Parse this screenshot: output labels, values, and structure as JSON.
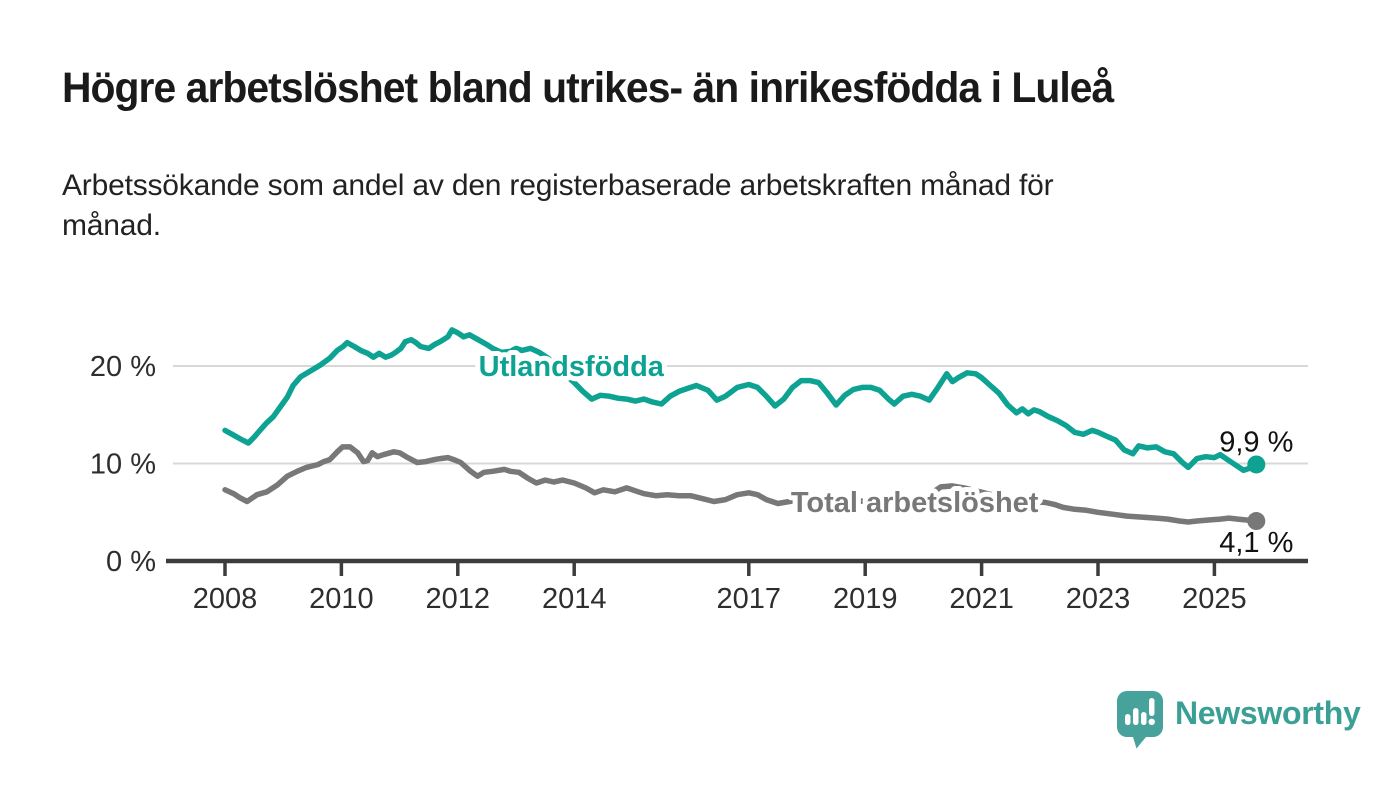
{
  "header": {
    "title": "Högre arbetslöshet bland utrikes- än inrikesfödda i Luleå",
    "subtitle_line1": "Arbetssökande som andel av den registerbaserade arbetskraften månad för",
    "subtitle_line2": "månad."
  },
  "chart_data": {
    "type": "line",
    "unit": "%",
    "grid": "horizontal",
    "legend_position": "inline-labels",
    "xlim": [
      2008,
      2025.75
    ],
    "ylim": [
      0,
      26
    ],
    "x_ticks": [
      "2008",
      "2010",
      "2012",
      "2014",
      "2017",
      "2019",
      "2021",
      "2023",
      "2025"
    ],
    "x_tick_years": [
      2008,
      2010,
      2012,
      2014,
      2017,
      2019,
      2021,
      2023,
      2025
    ],
    "y_ticks": [
      {
        "value": 0,
        "label": "0 %"
      },
      {
        "value": 10,
        "label": "10 %"
      },
      {
        "value": 20,
        "label": "20 %"
      }
    ],
    "series": [
      {
        "name": "Utlandsfödda",
        "color": "#0ea293",
        "end_label": "9,9 %",
        "end_value": 9.9,
        "label_anchor": {
          "x": 2013.95,
          "y": 20.0
        },
        "points": [
          [
            2008.0,
            13.4
          ],
          [
            2008.15,
            12.9
          ],
          [
            2008.3,
            12.4
          ],
          [
            2008.4,
            12.1
          ],
          [
            2008.5,
            12.7
          ],
          [
            2008.6,
            13.4
          ],
          [
            2008.72,
            14.2
          ],
          [
            2008.83,
            14.8
          ],
          [
            2008.95,
            15.8
          ],
          [
            2009.07,
            16.8
          ],
          [
            2009.17,
            18.0
          ],
          [
            2009.3,
            18.9
          ],
          [
            2009.5,
            19.6
          ],
          [
            2009.64,
            20.1
          ],
          [
            2009.8,
            20.8
          ],
          [
            2009.93,
            21.6
          ],
          [
            2010.03,
            22.0
          ],
          [
            2010.1,
            22.4
          ],
          [
            2010.22,
            22.0
          ],
          [
            2010.33,
            21.6
          ],
          [
            2010.45,
            21.3
          ],
          [
            2010.55,
            20.9
          ],
          [
            2010.65,
            21.3
          ],
          [
            2010.76,
            20.9
          ],
          [
            2010.85,
            21.1
          ],
          [
            2010.93,
            21.4
          ],
          [
            2011.02,
            21.8
          ],
          [
            2011.1,
            22.5
          ],
          [
            2011.2,
            22.7
          ],
          [
            2011.28,
            22.4
          ],
          [
            2011.36,
            22.0
          ],
          [
            2011.5,
            21.8
          ],
          [
            2011.6,
            22.2
          ],
          [
            2011.7,
            22.5
          ],
          [
            2011.83,
            23.0
          ],
          [
            2011.9,
            23.7
          ],
          [
            2012.0,
            23.4
          ],
          [
            2012.1,
            23.0
          ],
          [
            2012.2,
            23.2
          ],
          [
            2012.35,
            22.7
          ],
          [
            2012.5,
            22.2
          ],
          [
            2012.6,
            21.8
          ],
          [
            2012.75,
            21.4
          ],
          [
            2012.9,
            21.5
          ],
          [
            2013.0,
            21.8
          ],
          [
            2013.1,
            21.6
          ],
          [
            2013.25,
            21.8
          ],
          [
            2013.4,
            21.4
          ],
          [
            2013.55,
            20.8
          ],
          [
            2013.7,
            20.0
          ],
          [
            2013.85,
            19.1
          ],
          [
            2014.0,
            18.3
          ],
          [
            2014.15,
            17.4
          ],
          [
            2014.3,
            16.6
          ],
          [
            2014.45,
            17.0
          ],
          [
            2014.6,
            16.9
          ],
          [
            2014.75,
            16.7
          ],
          [
            2014.9,
            16.6
          ],
          [
            2015.05,
            16.4
          ],
          [
            2015.2,
            16.6
          ],
          [
            2015.35,
            16.3
          ],
          [
            2015.5,
            16.1
          ],
          [
            2015.65,
            16.9
          ],
          [
            2015.8,
            17.4
          ],
          [
            2015.95,
            17.7
          ],
          [
            2016.1,
            18.0
          ],
          [
            2016.3,
            17.5
          ],
          [
            2016.45,
            16.5
          ],
          [
            2016.6,
            16.9
          ],
          [
            2016.8,
            17.8
          ],
          [
            2017.0,
            18.1
          ],
          [
            2017.15,
            17.8
          ],
          [
            2017.3,
            16.9
          ],
          [
            2017.45,
            15.9
          ],
          [
            2017.6,
            16.6
          ],
          [
            2017.75,
            17.8
          ],
          [
            2017.9,
            18.5
          ],
          [
            2018.05,
            18.5
          ],
          [
            2018.2,
            18.3
          ],
          [
            2018.35,
            17.2
          ],
          [
            2018.5,
            16.0
          ],
          [
            2018.65,
            17.0
          ],
          [
            2018.8,
            17.6
          ],
          [
            2018.95,
            17.8
          ],
          [
            2019.1,
            17.8
          ],
          [
            2019.25,
            17.5
          ],
          [
            2019.4,
            16.6
          ],
          [
            2019.5,
            16.1
          ],
          [
            2019.65,
            16.9
          ],
          [
            2019.8,
            17.1
          ],
          [
            2019.95,
            16.9
          ],
          [
            2020.1,
            16.5
          ],
          [
            2020.25,
            17.8
          ],
          [
            2020.4,
            19.2
          ],
          [
            2020.5,
            18.4
          ],
          [
            2020.6,
            18.8
          ],
          [
            2020.75,
            19.3
          ],
          [
            2020.9,
            19.2
          ],
          [
            2021.0,
            18.8
          ],
          [
            2021.15,
            18.0
          ],
          [
            2021.3,
            17.2
          ],
          [
            2021.45,
            16.0
          ],
          [
            2021.6,
            15.2
          ],
          [
            2021.7,
            15.6
          ],
          [
            2021.8,
            15.1
          ],
          [
            2021.9,
            15.5
          ],
          [
            2022.0,
            15.3
          ],
          [
            2022.15,
            14.8
          ],
          [
            2022.3,
            14.4
          ],
          [
            2022.45,
            13.9
          ],
          [
            2022.6,
            13.2
          ],
          [
            2022.75,
            13.0
          ],
          [
            2022.9,
            13.4
          ],
          [
            2023.0,
            13.2
          ],
          [
            2023.15,
            12.8
          ],
          [
            2023.3,
            12.4
          ],
          [
            2023.45,
            11.4
          ],
          [
            2023.6,
            11.0
          ],
          [
            2023.7,
            11.8
          ],
          [
            2023.85,
            11.6
          ],
          [
            2024.0,
            11.7
          ],
          [
            2024.15,
            11.2
          ],
          [
            2024.3,
            11.0
          ],
          [
            2024.45,
            10.1
          ],
          [
            2024.55,
            9.6
          ],
          [
            2024.7,
            10.5
          ],
          [
            2024.85,
            10.7
          ],
          [
            2025.0,
            10.6
          ],
          [
            2025.1,
            10.9
          ],
          [
            2025.2,
            10.5
          ],
          [
            2025.35,
            9.9
          ],
          [
            2025.5,
            9.3
          ],
          [
            2025.6,
            9.5
          ],
          [
            2025.72,
            9.9
          ]
        ]
      },
      {
        "name": "Total arbetslöshet",
        "color": "#787878",
        "end_label": "4,1 %",
        "end_value": 4.1,
        "label_anchor": {
          "x": 2019.85,
          "y": 6.05
        },
        "points": [
          [
            2008.0,
            7.3
          ],
          [
            2008.15,
            6.9
          ],
          [
            2008.25,
            6.5
          ],
          [
            2008.38,
            6.1
          ],
          [
            2008.55,
            6.8
          ],
          [
            2008.72,
            7.1
          ],
          [
            2008.9,
            7.8
          ],
          [
            2009.07,
            8.7
          ],
          [
            2009.24,
            9.2
          ],
          [
            2009.4,
            9.6
          ],
          [
            2009.6,
            9.9
          ],
          [
            2009.7,
            10.2
          ],
          [
            2009.8,
            10.4
          ],
          [
            2009.93,
            11.2
          ],
          [
            2010.02,
            11.7
          ],
          [
            2010.15,
            11.7
          ],
          [
            2010.28,
            11.1
          ],
          [
            2010.38,
            10.2
          ],
          [
            2010.45,
            10.3
          ],
          [
            2010.53,
            11.1
          ],
          [
            2010.62,
            10.7
          ],
          [
            2010.72,
            10.9
          ],
          [
            2010.9,
            11.2
          ],
          [
            2011.0,
            11.1
          ],
          [
            2011.14,
            10.6
          ],
          [
            2011.3,
            10.1
          ],
          [
            2011.45,
            10.2
          ],
          [
            2011.6,
            10.4
          ],
          [
            2011.7,
            10.5
          ],
          [
            2011.83,
            10.6
          ],
          [
            2011.93,
            10.4
          ],
          [
            2012.05,
            10.1
          ],
          [
            2012.22,
            9.2
          ],
          [
            2012.34,
            8.7
          ],
          [
            2012.45,
            9.1
          ],
          [
            2012.6,
            9.2
          ],
          [
            2012.8,
            9.4
          ],
          [
            2012.9,
            9.2
          ],
          [
            2013.05,
            9.1
          ],
          [
            2013.2,
            8.5
          ],
          [
            2013.35,
            8.0
          ],
          [
            2013.5,
            8.3
          ],
          [
            2013.65,
            8.1
          ],
          [
            2013.8,
            8.3
          ],
          [
            2014.0,
            8.0
          ],
          [
            2014.2,
            7.5
          ],
          [
            2014.35,
            7.0
          ],
          [
            2014.5,
            7.3
          ],
          [
            2014.7,
            7.1
          ],
          [
            2014.9,
            7.5
          ],
          [
            2015.05,
            7.2
          ],
          [
            2015.2,
            6.9
          ],
          [
            2015.4,
            6.7
          ],
          [
            2015.6,
            6.8
          ],
          [
            2015.8,
            6.7
          ],
          [
            2016.0,
            6.7
          ],
          [
            2016.2,
            6.4
          ],
          [
            2016.4,
            6.1
          ],
          [
            2016.6,
            6.3
          ],
          [
            2016.8,
            6.8
          ],
          [
            2017.0,
            7.0
          ],
          [
            2017.15,
            6.8
          ],
          [
            2017.3,
            6.3
          ],
          [
            2017.5,
            5.9
          ],
          [
            2017.7,
            6.1
          ],
          [
            2017.9,
            6.3
          ],
          [
            2018.1,
            6.3
          ],
          [
            2018.35,
            6.1
          ],
          [
            2018.6,
            5.9
          ],
          [
            2018.85,
            6.1
          ],
          [
            2019.1,
            6.2
          ],
          [
            2019.35,
            6.0
          ],
          [
            2019.6,
            6.0
          ],
          [
            2019.85,
            6.2
          ],
          [
            2020.1,
            6.8
          ],
          [
            2020.3,
            7.6
          ],
          [
            2020.5,
            7.7
          ],
          [
            2020.7,
            7.5
          ],
          [
            2020.9,
            7.2
          ],
          [
            2021.1,
            6.9
          ],
          [
            2021.3,
            6.6
          ],
          [
            2021.5,
            6.4
          ],
          [
            2021.7,
            6.2
          ],
          [
            2021.9,
            6.1
          ],
          [
            2022.1,
            6.0
          ],
          [
            2022.25,
            5.8
          ],
          [
            2022.4,
            5.5
          ],
          [
            2022.6,
            5.3
          ],
          [
            2022.8,
            5.2
          ],
          [
            2023.0,
            5.0
          ],
          [
            2023.25,
            4.8
          ],
          [
            2023.5,
            4.6
          ],
          [
            2023.75,
            4.5
          ],
          [
            2024.0,
            4.4
          ],
          [
            2024.2,
            4.3
          ],
          [
            2024.4,
            4.1
          ],
          [
            2024.55,
            4.0
          ],
          [
            2024.7,
            4.1
          ],
          [
            2024.9,
            4.2
          ],
          [
            2025.1,
            4.3
          ],
          [
            2025.25,
            4.4
          ],
          [
            2025.4,
            4.3
          ],
          [
            2025.55,
            4.2
          ],
          [
            2025.72,
            4.1
          ]
        ]
      }
    ]
  },
  "footer": {
    "brand": "Newsworthy",
    "logo_icon": "speech-bubble-bar-chart-exclamation"
  },
  "colors": {
    "accent_teal": "#0ea293",
    "series_gray": "#787878",
    "gridline": "#d8d8d8",
    "axis": "#3c3c3c",
    "tick_text": "#2e2e2e",
    "value_text": "#111111",
    "title_text": "#1a1a1a",
    "brand_teal": "#46a29a"
  }
}
